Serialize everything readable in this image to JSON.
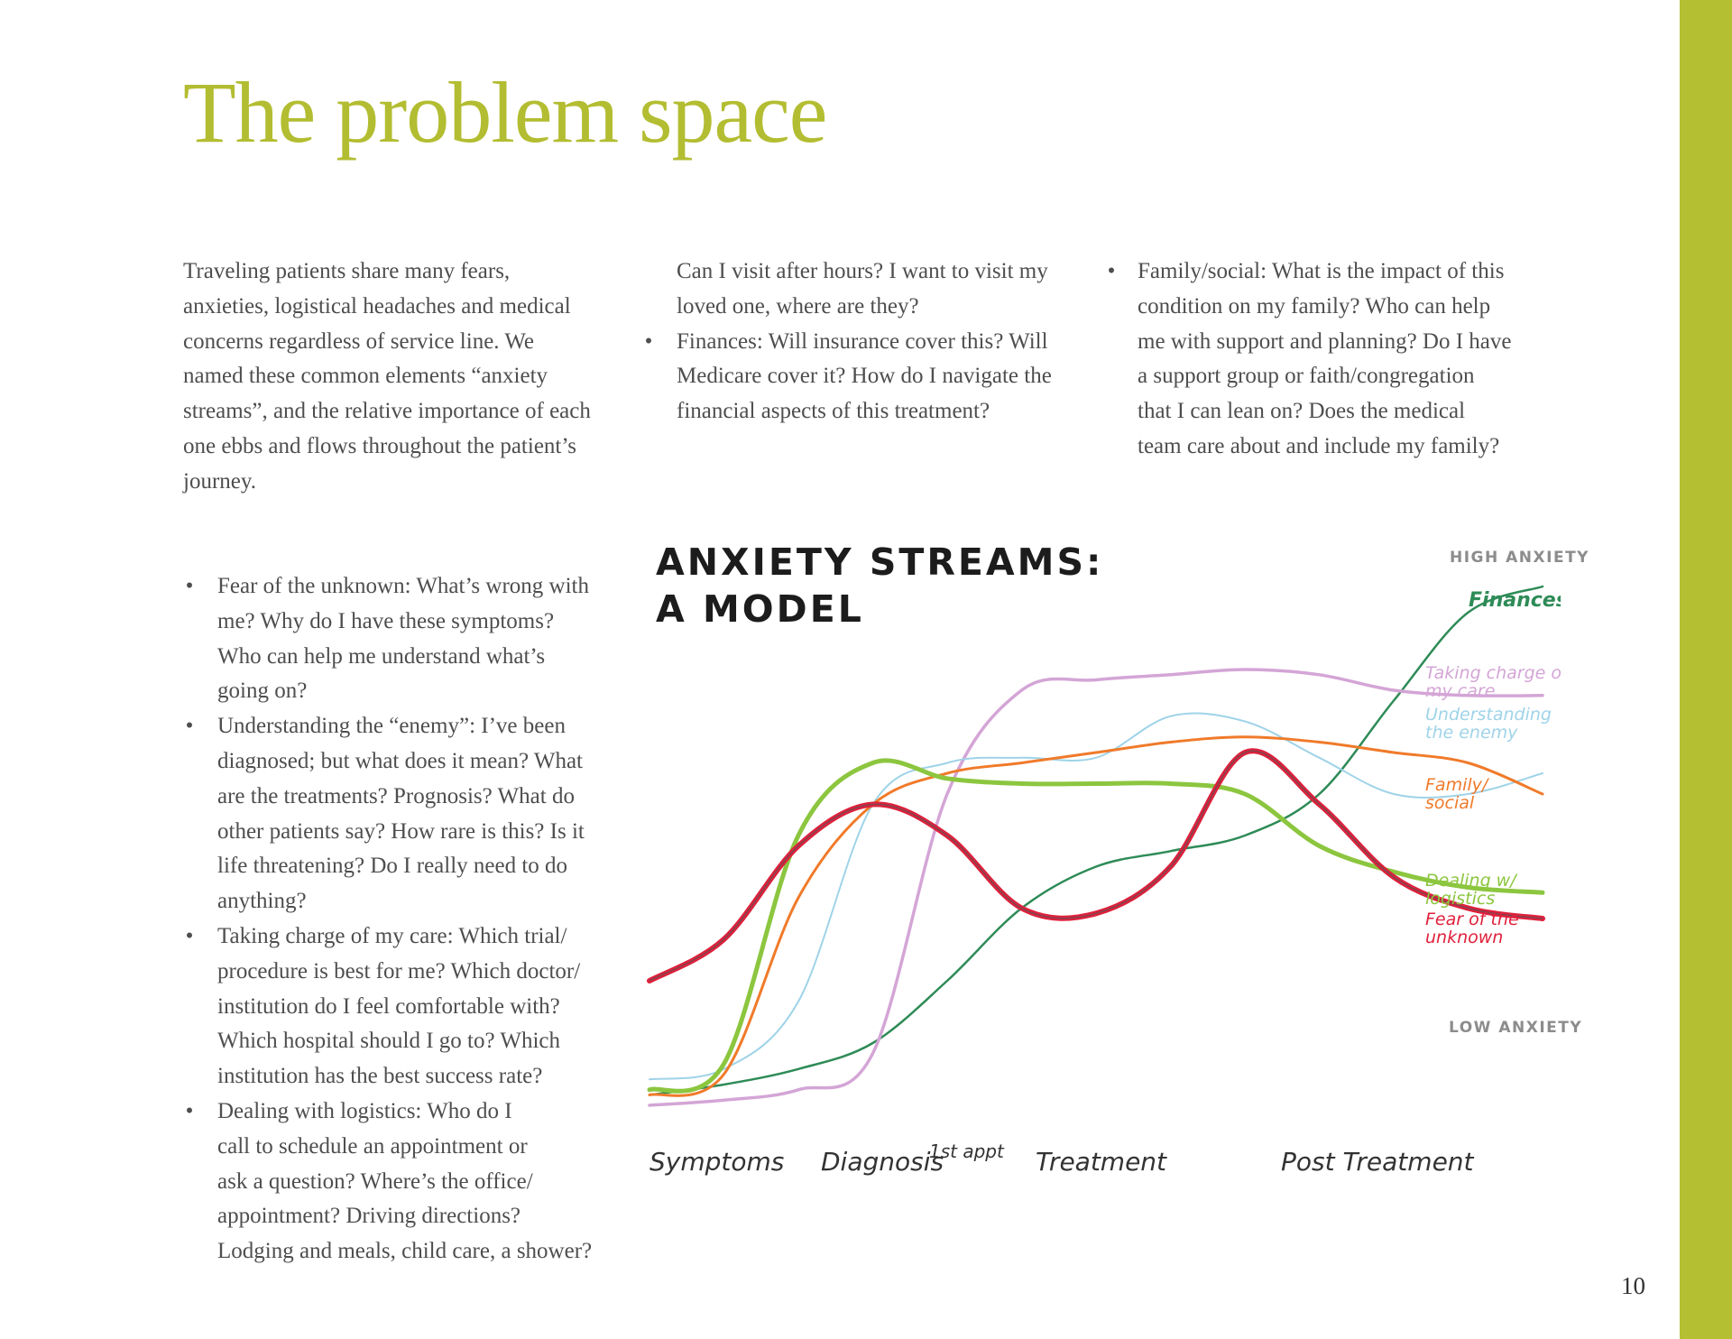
{
  "title": "The problem space",
  "intro_paragraph": [
    "Traveling patients share many fears,",
    "anxieties, logistical headaches and medical",
    "concerns regardless of service line. We",
    "named these common elements “anxiety",
    "streams”, and the relative importance of each",
    "one ebbs and flows throughout the patient’s",
    "journey."
  ],
  "left_bullets": [
    [
      "Fear of the unknown: What’s wrong with",
      "me? Why do I have these symptoms?",
      "Who can help me understand what’s",
      "going on?"
    ],
    [
      "Understanding the “enemy”: I’ve been",
      "diagnosed; but what does it mean? What",
      "are the treatments? Prognosis? What do",
      "other patients say? How rare is this? Is it",
      "life threatening? Do I really need to do",
      "anything?"
    ],
    [
      "Taking charge of my care: Which trial/",
      "procedure is best for me? Which doctor/",
      "institution do I feel comfortable with?",
      "Which hospital should I go to? Which",
      "institution has the best success rate?"
    ],
    [
      "Dealing with logistics: Who do I",
      "call to schedule an appointment or",
      "ask a question? Where’s the office/",
      "appointment? Driving directions?",
      "Lodging and meals, child care, a shower?"
    ]
  ],
  "middle_continuation": [
    "Can I visit after hours? I want to visit my",
    "loved one, where are they?"
  ],
  "middle_bullets": [
    [
      "Finances: Will insurance cover this? Will",
      "Medicare cover it? How do I navigate the",
      "financial aspects of this treatment?"
    ]
  ],
  "right_bullets": [
    [
      "Family/social: What is the impact of this",
      "condition on my family? Who can help",
      "me with support and planning? Do I have",
      "a support group or faith/congregation",
      "that I can lean on? Does the medical",
      "team care about and include my family?"
    ]
  ],
  "bullet_char": "•",
  "chart_title_lines": [
    "ANXIETY STREAMS:",
    "A MODEL"
  ],
  "high_anxiety_label": "HIGH ANXIETY",
  "low_anxiety_label": "LOW ANXIETY",
  "page_number": "10",
  "colors": {
    "accent": "#b3bd31",
    "finances": "#2e8b57",
    "taking_charge": "#d4a5d6",
    "understanding": "#9fd3e8",
    "family_social": "#f07a2a",
    "dealing_logistics": "#8cc63f",
    "fear_unknown": "#e0203c"
  },
  "chart_data": {
    "type": "line",
    "title": "ANXIETY STREAMS: A MODEL",
    "ylabel_top": "HIGH ANXIETY",
    "ylabel_bottom": "LOW ANXIETY",
    "x_labels": [
      "Symptoms",
      "Diagnosis",
      "1st appt",
      "Treatment",
      "Post Treatment"
    ],
    "x": [
      0,
      1,
      2,
      3,
      4,
      5,
      6,
      7,
      8,
      9,
      10,
      11,
      12
    ],
    "ylim": [
      0,
      100
    ],
    "series": [
      {
        "name": "Finances",
        "label_lines": [
          "Finances"
        ],
        "color": "#2e8b57",
        "values": [
          2,
          4,
          7,
          12,
          24,
          38,
          46,
          49,
          52,
          60,
          78,
          95,
          100
        ]
      },
      {
        "name": "Taking charge of my care",
        "label_lines": [
          "Taking charge of",
          "my care"
        ],
        "color": "#d4a5d6",
        "values": [
          0,
          1,
          3,
          10,
          60,
          80,
          82,
          83,
          84,
          83,
          80,
          79,
          79
        ]
      },
      {
        "name": "Understanding the enemy",
        "label_lines": [
          "Understanding",
          "the enemy"
        ],
        "color": "#9fd3e8",
        "values": [
          5,
          7,
          20,
          58,
          66,
          67,
          67,
          75,
          74,
          67,
          60,
          60,
          64
        ]
      },
      {
        "name": "Family/social",
        "label_lines": [
          "Family/",
          "social"
        ],
        "color": "#f07a2a",
        "values": [
          2,
          6,
          40,
          58,
          64,
          66,
          68,
          70,
          71,
          70,
          68,
          66,
          60
        ]
      },
      {
        "name": "Dealing w/ logistics",
        "label_lines": [
          "Dealing w/",
          "logistics"
        ],
        "color": "#8cc63f",
        "values": [
          3,
          8,
          52,
          66,
          63,
          62,
          62,
          62,
          60,
          50,
          45,
          42,
          41
        ]
      },
      {
        "name": "Fear of the unknown",
        "label_lines": [
          "Fear of the",
          "unknown"
        ],
        "color": "#e0203c",
        "values": [
          24,
          32,
          50,
          58,
          52,
          38,
          37,
          46,
          68,
          58,
          44,
          38,
          36
        ]
      }
    ]
  }
}
